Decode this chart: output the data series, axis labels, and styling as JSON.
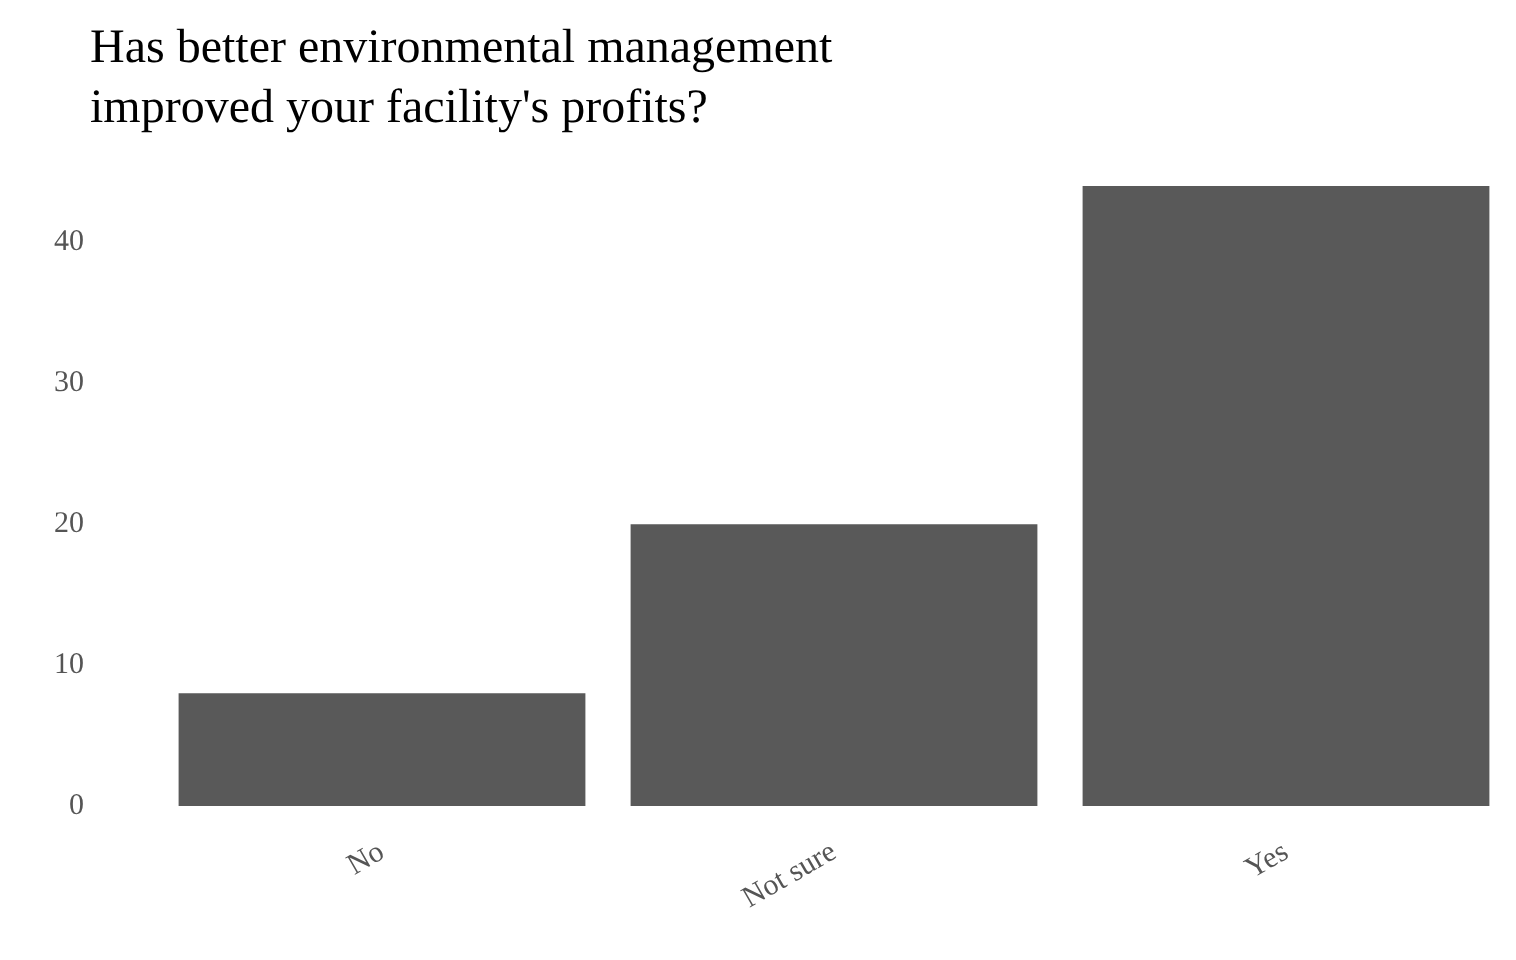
{
  "chart_data": {
    "type": "bar",
    "title": "Has better environmental management\nimproved your facility's profits?",
    "categories": [
      "No",
      "Not sure",
      "Yes"
    ],
    "values": [
      8,
      20,
      44
    ],
    "color": "#595959",
    "ylim": [
      0,
      44
    ],
    "yticks": [
      0,
      10,
      20,
      30,
      40
    ],
    "grid": false
  }
}
